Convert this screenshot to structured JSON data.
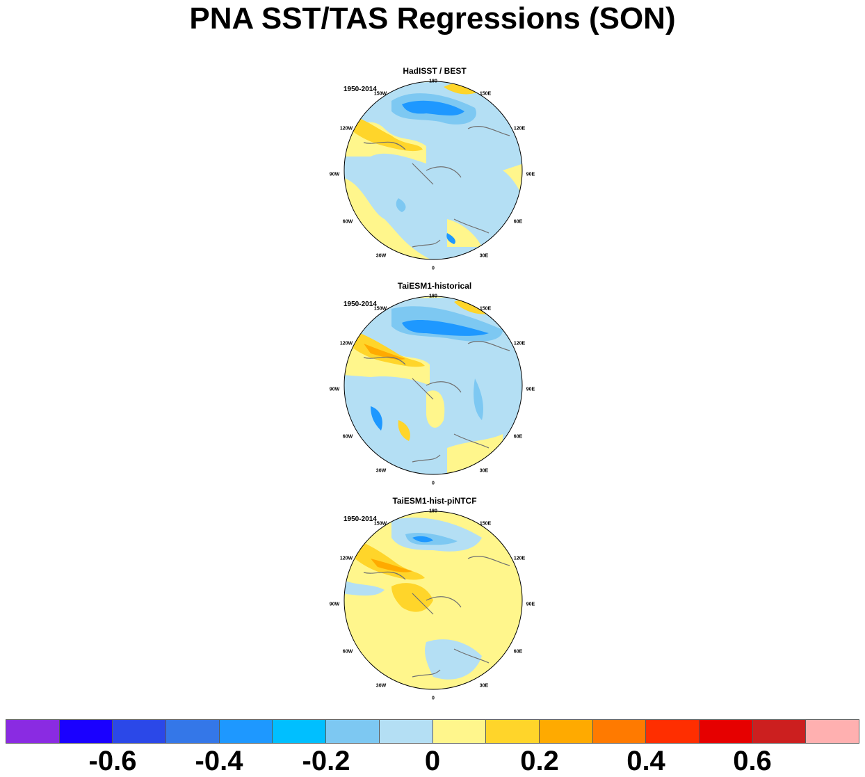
{
  "title": "PNA SST/TAS Regressions (SON)",
  "panels": [
    {
      "title": "HadISST / BEST",
      "period": "1950-2014"
    },
    {
      "title": "TaiESM1-historical",
      "period": "1950-2014"
    },
    {
      "title": "TaiESM1-hist-piNTCF",
      "period": "1950-2014"
    }
  ],
  "longitude_labels": [
    "180",
    "150E",
    "120E",
    "90E",
    "60E",
    "30E",
    "0",
    "30W",
    "60W",
    "90W",
    "120W",
    "150W"
  ],
  "colorbar": {
    "colors": [
      "#8a2be2",
      "#1a00ff",
      "#2b48e8",
      "#3477e8",
      "#1e98ff",
      "#00bfff",
      "#7dc8f2",
      "#b4dff4",
      "#fff68c",
      "#ffd52a",
      "#ffaa00",
      "#ff7a00",
      "#ff2e00",
      "#e60000",
      "#cc1f1f",
      "#ffb0b0"
    ],
    "labels": [
      "-0.6",
      "-0.4",
      "-0.2",
      "0",
      "0.2",
      "0.4",
      "0.6"
    ]
  },
  "colors": {
    "ocean_default": "#b4dff4",
    "positive_light": "#fff68c",
    "positive_mid": "#ffd52a",
    "positive_strong": "#ffaa00",
    "positive_stronger": "#ff7a00",
    "negative_light": "#7dc8f2",
    "negative_mid": "#1e98ff",
    "coast": "#707070"
  }
}
